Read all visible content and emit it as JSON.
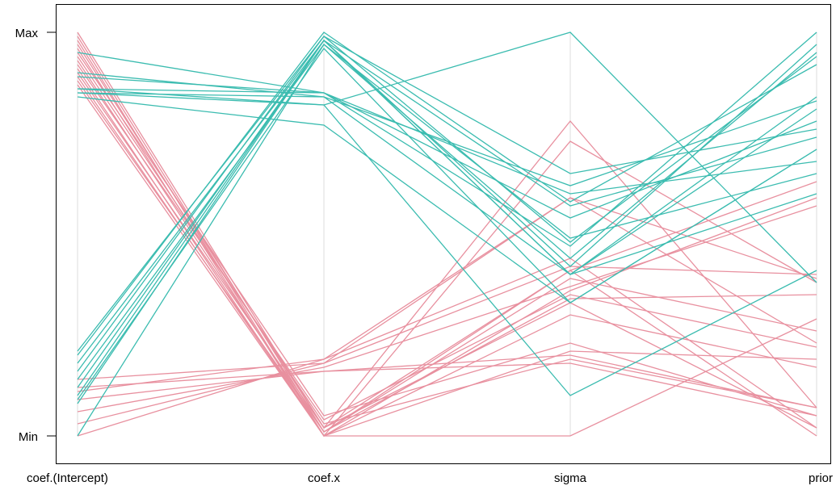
{
  "chart_data": {
    "type": "parallel-coordinates",
    "axes": [
      "coef.(Intercept)",
      "coef.x",
      "sigma",
      "prior"
    ],
    "y_ticks": [
      {
        "label": "Max",
        "value": 1
      },
      {
        "label": "Min",
        "value": 0
      }
    ],
    "ylim": [
      0,
      1
    ],
    "grid": "vertical axis lines",
    "colors": {
      "group_a": "#e8909f",
      "group_b": "#3bbcb0",
      "axis_line": "#dddddd"
    },
    "series": [
      {
        "group": "a",
        "values": [
          1.0,
          0.02,
          0.78,
          0.07
        ]
      },
      {
        "group": "a",
        "values": [
          0.99,
          0.01,
          0.41,
          0.0
        ]
      },
      {
        "group": "a",
        "values": [
          0.98,
          0.0,
          0.73,
          0.38
        ]
      },
      {
        "group": "a",
        "values": [
          0.97,
          0.02,
          0.33,
          0.02
        ]
      },
      {
        "group": "a",
        "values": [
          0.96,
          0.0,
          0.21,
          0.19
        ]
      },
      {
        "group": "a",
        "values": [
          0.95,
          0.05,
          0.23,
          0.05
        ]
      },
      {
        "group": "a",
        "values": [
          0.94,
          0.03,
          0.19,
          0.07
        ]
      },
      {
        "group": "a",
        "values": [
          0.93,
          0.01,
          0.39,
          0.26
        ]
      },
      {
        "group": "a",
        "values": [
          0.92,
          0.04,
          0.35,
          0.22
        ]
      },
      {
        "group": "a",
        "values": [
          0.91,
          0.0,
          0.0,
          0.29
        ]
      },
      {
        "group": "a",
        "values": [
          0.9,
          0.02,
          0.41,
          0.63
        ]
      },
      {
        "group": "a",
        "values": [
          0.89,
          0.0,
          0.36,
          0.59
        ]
      },
      {
        "group": "a",
        "values": [
          0.88,
          0.01,
          0.34,
          0.35
        ]
      },
      {
        "group": "a",
        "values": [
          0.87,
          0.0,
          0.3,
          0.17
        ]
      },
      {
        "group": "a",
        "values": [
          0.0,
          0.19,
          0.59,
          0.39
        ]
      },
      {
        "group": "a",
        "values": [
          0.03,
          0.18,
          0.42,
          0.4
        ]
      },
      {
        "group": "a",
        "values": [
          0.06,
          0.17,
          0.37,
          0.57
        ]
      },
      {
        "group": "a",
        "values": [
          0.09,
          0.16,
          0.2,
          0.07
        ]
      },
      {
        "group": "a",
        "values": [
          0.11,
          0.19,
          0.44,
          0.02
        ]
      },
      {
        "group": "a",
        "values": [
          0.14,
          0.18,
          0.59,
          0.23
        ]
      },
      {
        "group": "a",
        "values": [
          0.12,
          0.16,
          0.18,
          0.05
        ]
      },
      {
        "group": "b",
        "values": [
          0.21,
          0.99,
          0.65,
          0.76
        ]
      },
      {
        "group": "b",
        "values": [
          0.2,
          1.0,
          0.58,
          0.92
        ]
      },
      {
        "group": "b",
        "values": [
          0.18,
          0.98,
          0.4,
          0.84
        ]
      },
      {
        "group": "b",
        "values": [
          0.16,
          0.99,
          0.48,
          0.94
        ]
      },
      {
        "group": "b",
        "values": [
          0.14,
          0.97,
          0.44,
          0.95
        ]
      },
      {
        "group": "b",
        "values": [
          0.12,
          0.98,
          0.4,
          0.81
        ]
      },
      {
        "group": "b",
        "values": [
          0.1,
          0.98,
          0.57,
          0.74
        ]
      },
      {
        "group": "b",
        "values": [
          0.09,
          0.96,
          0.33,
          0.71
        ]
      },
      {
        "group": "b",
        "values": [
          0.08,
          0.98,
          0.42,
          0.97
        ]
      },
      {
        "group": "b",
        "values": [
          0.0,
          0.97,
          0.49,
          0.65
        ]
      },
      {
        "group": "b",
        "values": [
          0.95,
          0.85,
          0.47,
          1.0
        ]
      },
      {
        "group": "b",
        "values": [
          0.9,
          0.84,
          0.62,
          0.83
        ]
      },
      {
        "group": "b",
        "values": [
          0.89,
          0.85,
          0.6,
          0.68
        ]
      },
      {
        "group": "b",
        "values": [
          0.86,
          0.85,
          0.54,
          0.78
        ]
      },
      {
        "group": "b",
        "values": [
          0.85,
          0.84,
          0.4,
          0.6
        ]
      },
      {
        "group": "b",
        "values": [
          0.85,
          0.82,
          0.1,
          0.41
        ]
      },
      {
        "group": "b",
        "values": [
          0.86,
          0.82,
          1.0,
          0.38
        ]
      },
      {
        "group": "b",
        "values": [
          0.84,
          0.77,
          0.33,
          0.71
        ]
      }
    ]
  }
}
